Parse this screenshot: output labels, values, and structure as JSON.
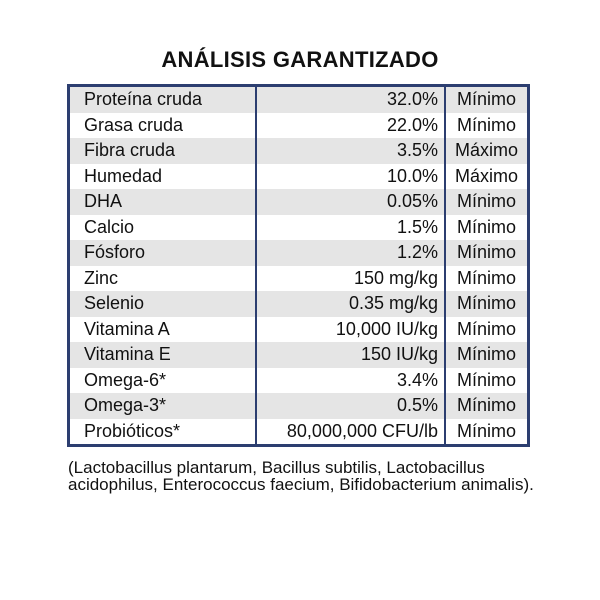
{
  "title": "ANÁLISIS GARANTIZADO",
  "rows": [
    {
      "name": "Proteína cruda",
      "value": "32.0%",
      "qualifier": "Mínimo"
    },
    {
      "name": "Grasa cruda",
      "value": "22.0%",
      "qualifier": "Mínimo"
    },
    {
      "name": "Fibra cruda",
      "value": "3.5%",
      "qualifier": "Máximo"
    },
    {
      "name": "Humedad",
      "value": "10.0%",
      "qualifier": "Máximo"
    },
    {
      "name": "DHA",
      "value": "0.05%",
      "qualifier": "Mínimo"
    },
    {
      "name": "Calcio",
      "value": "1.5%",
      "qualifier": "Mínimo"
    },
    {
      "name": "Fósforo",
      "value": "1.2%",
      "qualifier": "Mínimo"
    },
    {
      "name": "Zinc",
      "value": "150 mg/kg",
      "qualifier": "Mínimo"
    },
    {
      "name": "Selenio",
      "value": "0.35 mg/kg",
      "qualifier": "Mínimo"
    },
    {
      "name": "Vitamina A",
      "value": "10,000 IU/kg",
      "qualifier": "Mínimo"
    },
    {
      "name": "Vitamina E",
      "value": "150 IU/kg",
      "qualifier": "Mínimo"
    },
    {
      "name": "Omega-6*",
      "value": "3.4%",
      "qualifier": "Mínimo"
    },
    {
      "name": "Omega-3*",
      "value": "0.5%",
      "qualifier": "Mínimo"
    },
    {
      "name": "Probióticos*",
      "value": "80,000,000 CFU/lb",
      "qualifier": "Mínimo"
    }
  ],
  "footnote": "(Lactobacillus plantarum, Bacillus subtilis, Lactobacillus acidophilus, Enterococcus faecium, Bifidobacterium animalis).",
  "colors": {
    "border": "#2c3e70",
    "stripe": "#e5e5e5"
  }
}
